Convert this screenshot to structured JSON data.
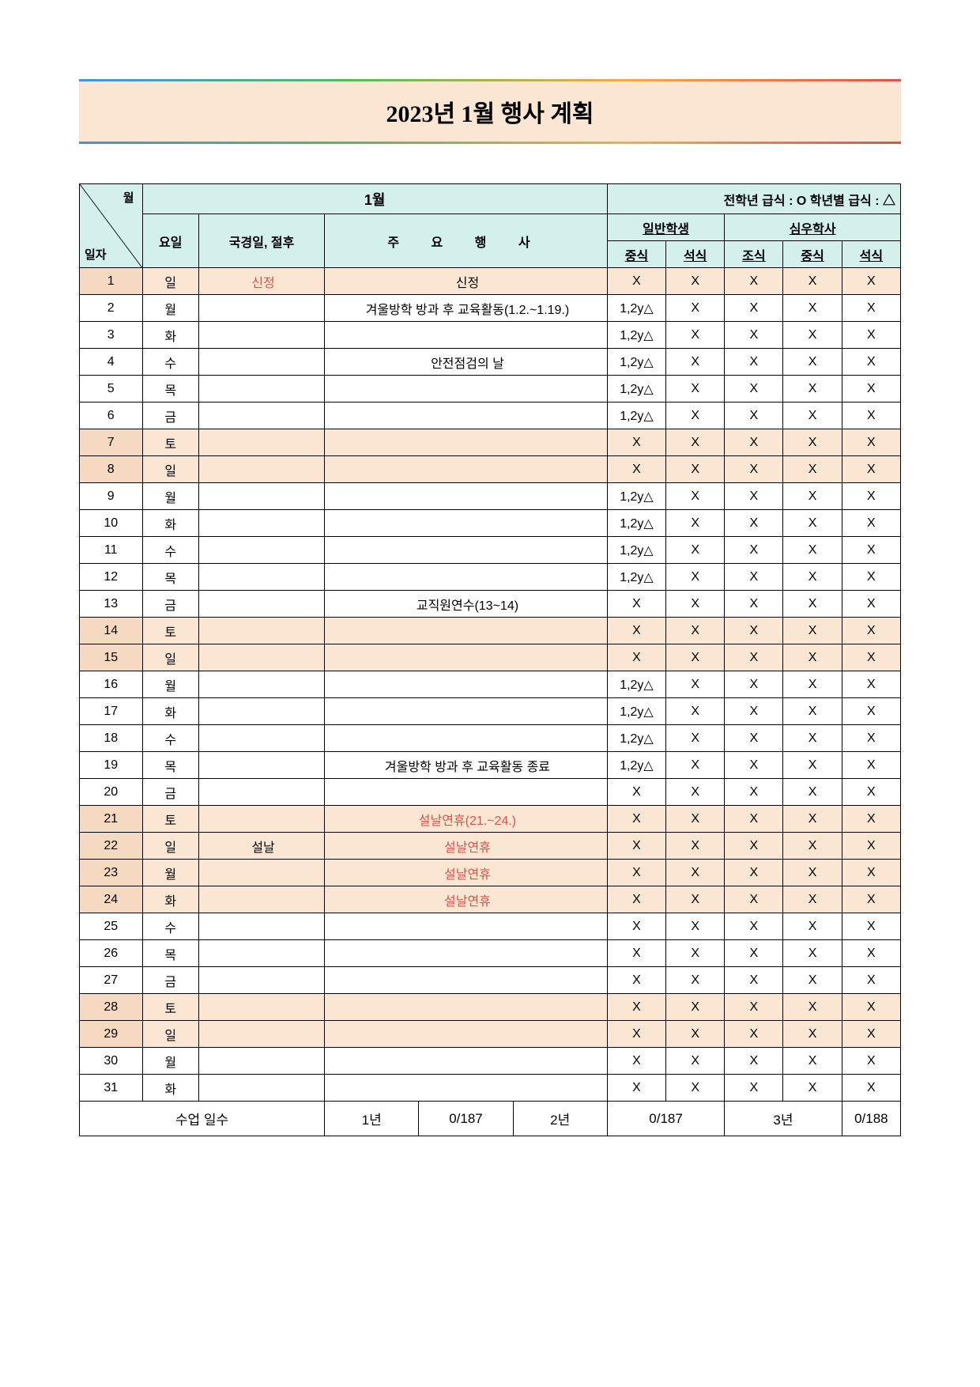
{
  "title": "2023년 1월 행사 계획",
  "banner_bg": "#fae6d2",
  "header_bg": "#d4f0ed",
  "shaded_bg": "#fae6d2",
  "red_color": "#d9534f",
  "header": {
    "month_label": "1월",
    "legend": "전학년 급식 : O 학년별 급식 : △",
    "diag_top": "월",
    "diag_bottom": "일자",
    "day_col": "요일",
    "holiday_col": "국경일, 절후",
    "event_col": "주요행사",
    "event_col_spaced": "주 요 행 사",
    "group_general": "일반학생",
    "group_dorm": "심우학사",
    "meal_lunch": "중식",
    "meal_dinner": "석식",
    "meal_breakfast": "조식"
  },
  "rows": [
    {
      "date": "1",
      "day": "일",
      "holiday": "신정",
      "holiday_red": true,
      "event": "신정",
      "event_red": false,
      "m": [
        "X",
        "X",
        "X",
        "X",
        "X"
      ],
      "shaded": true
    },
    {
      "date": "2",
      "day": "월",
      "holiday": "",
      "event": "겨울방학 방과 후 교육활동(1.2.~1.19.)",
      "m": [
        "1,2y△",
        "X",
        "X",
        "X",
        "X"
      ],
      "shaded": false
    },
    {
      "date": "3",
      "day": "화",
      "holiday": "",
      "event": "",
      "m": [
        "1,2y△",
        "X",
        "X",
        "X",
        "X"
      ],
      "shaded": false
    },
    {
      "date": "4",
      "day": "수",
      "holiday": "",
      "event": "안전점검의 날",
      "m": [
        "1,2y△",
        "X",
        "X",
        "X",
        "X"
      ],
      "shaded": false
    },
    {
      "date": "5",
      "day": "목",
      "holiday": "",
      "event": "",
      "m": [
        "1,2y△",
        "X",
        "X",
        "X",
        "X"
      ],
      "shaded": false
    },
    {
      "date": "6",
      "day": "금",
      "holiday": "",
      "event": "",
      "m": [
        "1,2y△",
        "X",
        "X",
        "X",
        "X"
      ],
      "shaded": false
    },
    {
      "date": "7",
      "day": "토",
      "holiday": "",
      "event": "",
      "m": [
        "X",
        "X",
        "X",
        "X",
        "X"
      ],
      "shaded": true
    },
    {
      "date": "8",
      "day": "일",
      "holiday": "",
      "event": "",
      "m": [
        "X",
        "X",
        "X",
        "X",
        "X"
      ],
      "shaded": true
    },
    {
      "date": "9",
      "day": "월",
      "holiday": "",
      "event": "",
      "m": [
        "1,2y△",
        "X",
        "X",
        "X",
        "X"
      ],
      "shaded": false
    },
    {
      "date": "10",
      "day": "화",
      "holiday": "",
      "event": "",
      "m": [
        "1,2y△",
        "X",
        "X",
        "X",
        "X"
      ],
      "shaded": false
    },
    {
      "date": "11",
      "day": "수",
      "holiday": "",
      "event": "",
      "m": [
        "1,2y△",
        "X",
        "X",
        "X",
        "X"
      ],
      "shaded": false
    },
    {
      "date": "12",
      "day": "목",
      "holiday": "",
      "event": "",
      "m": [
        "1,2y△",
        "X",
        "X",
        "X",
        "X"
      ],
      "shaded": false
    },
    {
      "date": "13",
      "day": "금",
      "holiday": "",
      "event": "교직원연수(13~14)",
      "m": [
        "X",
        "X",
        "X",
        "X",
        "X"
      ],
      "shaded": false
    },
    {
      "date": "14",
      "day": "토",
      "holiday": "",
      "event": "",
      "m": [
        "X",
        "X",
        "X",
        "X",
        "X"
      ],
      "shaded": true
    },
    {
      "date": "15",
      "day": "일",
      "holiday": "",
      "event": "",
      "m": [
        "X",
        "X",
        "X",
        "X",
        "X"
      ],
      "shaded": true
    },
    {
      "date": "16",
      "day": "월",
      "holiday": "",
      "event": "",
      "m": [
        "1,2y△",
        "X",
        "X",
        "X",
        "X"
      ],
      "shaded": false
    },
    {
      "date": "17",
      "day": "화",
      "holiday": "",
      "event": "",
      "m": [
        "1,2y△",
        "X",
        "X",
        "X",
        "X"
      ],
      "shaded": false
    },
    {
      "date": "18",
      "day": "수",
      "holiday": "",
      "event": "",
      "m": [
        "1,2y△",
        "X",
        "X",
        "X",
        "X"
      ],
      "shaded": false
    },
    {
      "date": "19",
      "day": "목",
      "holiday": "",
      "event": "겨울방학 방과 후 교육활동 종료",
      "m": [
        "1,2y△",
        "X",
        "X",
        "X",
        "X"
      ],
      "shaded": false
    },
    {
      "date": "20",
      "day": "금",
      "holiday": "",
      "event": "",
      "m": [
        "X",
        "X",
        "X",
        "X",
        "X"
      ],
      "shaded": false
    },
    {
      "date": "21",
      "day": "토",
      "holiday": "",
      "event": "설날연휴(21.~24.)",
      "event_red": true,
      "m": [
        "X",
        "X",
        "X",
        "X",
        "X"
      ],
      "shaded": true
    },
    {
      "date": "22",
      "day": "일",
      "holiday": "설날",
      "event": "설날연휴",
      "event_red": true,
      "m": [
        "X",
        "X",
        "X",
        "X",
        "X"
      ],
      "shaded": true
    },
    {
      "date": "23",
      "day": "월",
      "holiday": "",
      "event": "설날연휴",
      "event_red": true,
      "m": [
        "X",
        "X",
        "X",
        "X",
        "X"
      ],
      "shaded": true
    },
    {
      "date": "24",
      "day": "화",
      "holiday": "",
      "event": "설날연휴",
      "event_red": true,
      "m": [
        "X",
        "X",
        "X",
        "X",
        "X"
      ],
      "shaded": true
    },
    {
      "date": "25",
      "day": "수",
      "holiday": "",
      "event": "",
      "m": [
        "X",
        "X",
        "X",
        "X",
        "X"
      ],
      "shaded": false
    },
    {
      "date": "26",
      "day": "목",
      "holiday": "",
      "event": "",
      "m": [
        "X",
        "X",
        "X",
        "X",
        "X"
      ],
      "shaded": false
    },
    {
      "date": "27",
      "day": "금",
      "holiday": "",
      "event": "",
      "m": [
        "X",
        "X",
        "X",
        "X",
        "X"
      ],
      "shaded": false
    },
    {
      "date": "28",
      "day": "토",
      "holiday": "",
      "event": "",
      "m": [
        "X",
        "X",
        "X",
        "X",
        "X"
      ],
      "shaded": true
    },
    {
      "date": "29",
      "day": "일",
      "holiday": "",
      "event": "",
      "m": [
        "X",
        "X",
        "X",
        "X",
        "X"
      ],
      "shaded": true
    },
    {
      "date": "30",
      "day": "월",
      "holiday": "",
      "event": "",
      "m": [
        "X",
        "X",
        "X",
        "X",
        "X"
      ],
      "shaded": false
    },
    {
      "date": "31",
      "day": "화",
      "holiday": "",
      "event": "",
      "m": [
        "X",
        "X",
        "X",
        "X",
        "X"
      ],
      "shaded": false
    }
  ],
  "footer": {
    "label": "수업 일수",
    "y1_label": "1년",
    "y1_val": "0/187",
    "y2_label": "2년",
    "y2_val": "0/187",
    "y3_label": "3년",
    "y3_val": "0/188"
  }
}
